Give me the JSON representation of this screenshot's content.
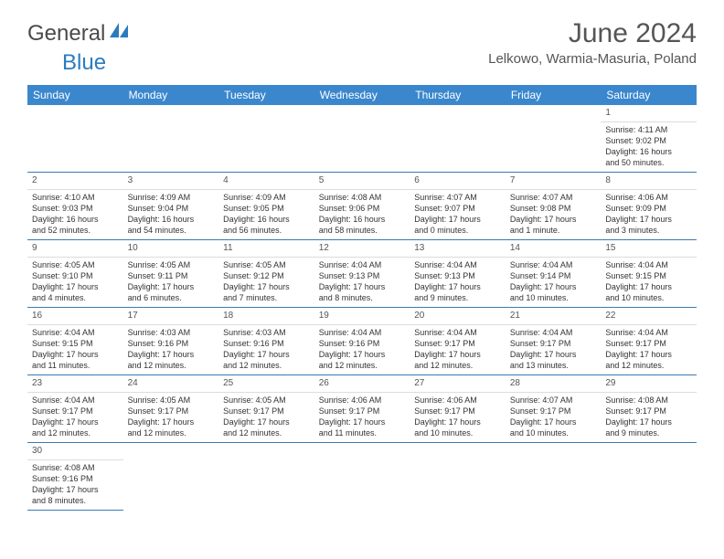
{
  "brand": {
    "part1": "General",
    "part2": "Blue"
  },
  "title": "June 2024",
  "location": "Lelkowo, Warmia-Masuria, Poland",
  "colors": {
    "header_bg": "#3a87cd",
    "header_text": "#ffffff",
    "row_border": "#3a7ab0",
    "daynum_border": "#dcdcdc",
    "text": "#333333",
    "brand_blue": "#2b7bbf"
  },
  "dayHeaders": [
    "Sunday",
    "Monday",
    "Tuesday",
    "Wednesday",
    "Thursday",
    "Friday",
    "Saturday"
  ],
  "weeks": [
    [
      null,
      null,
      null,
      null,
      null,
      null,
      {
        "n": "1",
        "sr": "Sunrise: 4:11 AM",
        "ss": "Sunset: 9:02 PM",
        "d1": "Daylight: 16 hours",
        "d2": "and 50 minutes."
      }
    ],
    [
      {
        "n": "2",
        "sr": "Sunrise: 4:10 AM",
        "ss": "Sunset: 9:03 PM",
        "d1": "Daylight: 16 hours",
        "d2": "and 52 minutes."
      },
      {
        "n": "3",
        "sr": "Sunrise: 4:09 AM",
        "ss": "Sunset: 9:04 PM",
        "d1": "Daylight: 16 hours",
        "d2": "and 54 minutes."
      },
      {
        "n": "4",
        "sr": "Sunrise: 4:09 AM",
        "ss": "Sunset: 9:05 PM",
        "d1": "Daylight: 16 hours",
        "d2": "and 56 minutes."
      },
      {
        "n": "5",
        "sr": "Sunrise: 4:08 AM",
        "ss": "Sunset: 9:06 PM",
        "d1": "Daylight: 16 hours",
        "d2": "and 58 minutes."
      },
      {
        "n": "6",
        "sr": "Sunrise: 4:07 AM",
        "ss": "Sunset: 9:07 PM",
        "d1": "Daylight: 17 hours",
        "d2": "and 0 minutes."
      },
      {
        "n": "7",
        "sr": "Sunrise: 4:07 AM",
        "ss": "Sunset: 9:08 PM",
        "d1": "Daylight: 17 hours",
        "d2": "and 1 minute."
      },
      {
        "n": "8",
        "sr": "Sunrise: 4:06 AM",
        "ss": "Sunset: 9:09 PM",
        "d1": "Daylight: 17 hours",
        "d2": "and 3 minutes."
      }
    ],
    [
      {
        "n": "9",
        "sr": "Sunrise: 4:05 AM",
        "ss": "Sunset: 9:10 PM",
        "d1": "Daylight: 17 hours",
        "d2": "and 4 minutes."
      },
      {
        "n": "10",
        "sr": "Sunrise: 4:05 AM",
        "ss": "Sunset: 9:11 PM",
        "d1": "Daylight: 17 hours",
        "d2": "and 6 minutes."
      },
      {
        "n": "11",
        "sr": "Sunrise: 4:05 AM",
        "ss": "Sunset: 9:12 PM",
        "d1": "Daylight: 17 hours",
        "d2": "and 7 minutes."
      },
      {
        "n": "12",
        "sr": "Sunrise: 4:04 AM",
        "ss": "Sunset: 9:13 PM",
        "d1": "Daylight: 17 hours",
        "d2": "and 8 minutes."
      },
      {
        "n": "13",
        "sr": "Sunrise: 4:04 AM",
        "ss": "Sunset: 9:13 PM",
        "d1": "Daylight: 17 hours",
        "d2": "and 9 minutes."
      },
      {
        "n": "14",
        "sr": "Sunrise: 4:04 AM",
        "ss": "Sunset: 9:14 PM",
        "d1": "Daylight: 17 hours",
        "d2": "and 10 minutes."
      },
      {
        "n": "15",
        "sr": "Sunrise: 4:04 AM",
        "ss": "Sunset: 9:15 PM",
        "d1": "Daylight: 17 hours",
        "d2": "and 10 minutes."
      }
    ],
    [
      {
        "n": "16",
        "sr": "Sunrise: 4:04 AM",
        "ss": "Sunset: 9:15 PM",
        "d1": "Daylight: 17 hours",
        "d2": "and 11 minutes."
      },
      {
        "n": "17",
        "sr": "Sunrise: 4:03 AM",
        "ss": "Sunset: 9:16 PM",
        "d1": "Daylight: 17 hours",
        "d2": "and 12 minutes."
      },
      {
        "n": "18",
        "sr": "Sunrise: 4:03 AM",
        "ss": "Sunset: 9:16 PM",
        "d1": "Daylight: 17 hours",
        "d2": "and 12 minutes."
      },
      {
        "n": "19",
        "sr": "Sunrise: 4:04 AM",
        "ss": "Sunset: 9:16 PM",
        "d1": "Daylight: 17 hours",
        "d2": "and 12 minutes."
      },
      {
        "n": "20",
        "sr": "Sunrise: 4:04 AM",
        "ss": "Sunset: 9:17 PM",
        "d1": "Daylight: 17 hours",
        "d2": "and 12 minutes."
      },
      {
        "n": "21",
        "sr": "Sunrise: 4:04 AM",
        "ss": "Sunset: 9:17 PM",
        "d1": "Daylight: 17 hours",
        "d2": "and 13 minutes."
      },
      {
        "n": "22",
        "sr": "Sunrise: 4:04 AM",
        "ss": "Sunset: 9:17 PM",
        "d1": "Daylight: 17 hours",
        "d2": "and 12 minutes."
      }
    ],
    [
      {
        "n": "23",
        "sr": "Sunrise: 4:04 AM",
        "ss": "Sunset: 9:17 PM",
        "d1": "Daylight: 17 hours",
        "d2": "and 12 minutes."
      },
      {
        "n": "24",
        "sr": "Sunrise: 4:05 AM",
        "ss": "Sunset: 9:17 PM",
        "d1": "Daylight: 17 hours",
        "d2": "and 12 minutes."
      },
      {
        "n": "25",
        "sr": "Sunrise: 4:05 AM",
        "ss": "Sunset: 9:17 PM",
        "d1": "Daylight: 17 hours",
        "d2": "and 12 minutes."
      },
      {
        "n": "26",
        "sr": "Sunrise: 4:06 AM",
        "ss": "Sunset: 9:17 PM",
        "d1": "Daylight: 17 hours",
        "d2": "and 11 minutes."
      },
      {
        "n": "27",
        "sr": "Sunrise: 4:06 AM",
        "ss": "Sunset: 9:17 PM",
        "d1": "Daylight: 17 hours",
        "d2": "and 10 minutes."
      },
      {
        "n": "28",
        "sr": "Sunrise: 4:07 AM",
        "ss": "Sunset: 9:17 PM",
        "d1": "Daylight: 17 hours",
        "d2": "and 10 minutes."
      },
      {
        "n": "29",
        "sr": "Sunrise: 4:08 AM",
        "ss": "Sunset: 9:17 PM",
        "d1": "Daylight: 17 hours",
        "d2": "and 9 minutes."
      }
    ],
    [
      {
        "n": "30",
        "sr": "Sunrise: 4:08 AM",
        "ss": "Sunset: 9:16 PM",
        "d1": "Daylight: 17 hours",
        "d2": "and 8 minutes."
      },
      null,
      null,
      null,
      null,
      null,
      null
    ]
  ]
}
